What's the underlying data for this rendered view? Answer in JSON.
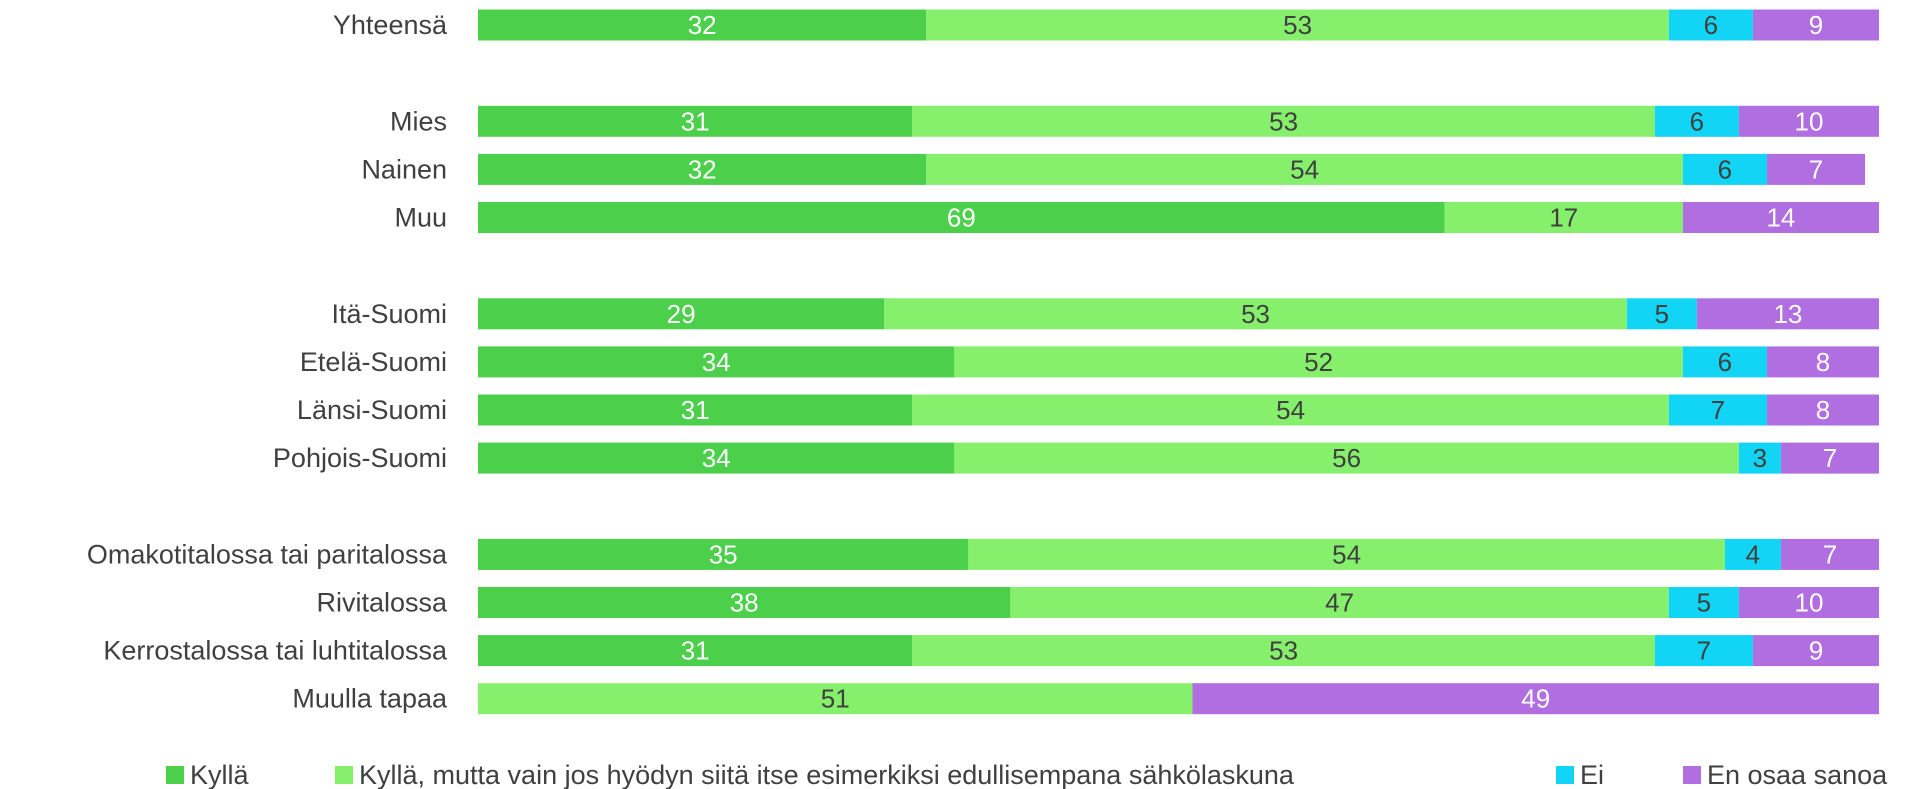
{
  "chart_data": {
    "type": "bar",
    "orientation": "horizontal",
    "stacked": true,
    "title": "",
    "xlabel": "",
    "ylabel": "",
    "xlim": [
      0,
      100
    ],
    "grid": false,
    "legend_position": "bottom",
    "categories": [
      "Yhteensä",
      "Mies",
      "Nainen",
      "Muu",
      "Itä-Suomi",
      "Etelä-Suomi",
      "Länsi-Suomi",
      "Pohjois-Suomi",
      "Omakotitalossa tai paritalossa",
      "Rivitalossa",
      "Kerrostalossa tai luhtitalossa",
      "Muulla tapaa"
    ],
    "groups_after": [
      0,
      3,
      7
    ],
    "series": [
      {
        "name": "Kyllä",
        "color": "#4cd04c",
        "label_color": "#ffffff",
        "values": [
          32,
          31,
          32,
          69,
          29,
          34,
          31,
          34,
          35,
          38,
          31,
          0
        ]
      },
      {
        "name": "Kyllä, mutta vain jos hyödyn siitä itse esimerkiksi edullisempana sähkölaskuna",
        "color": "#86f06c",
        "label_color": "#404040",
        "values": [
          53,
          53,
          54,
          17,
          53,
          52,
          54,
          56,
          54,
          47,
          53,
          51
        ]
      },
      {
        "name": "Ei",
        "color": "#12d4f4",
        "label_color": "#404040",
        "values": [
          6,
          6,
          6,
          0,
          5,
          6,
          7,
          3,
          4,
          5,
          7,
          0
        ]
      },
      {
        "name": "En osaa sanoa",
        "color": "#b06ee0",
        "label_color": "#ffffff",
        "values": [
          9,
          10,
          7,
          14,
          13,
          8,
          8,
          7,
          7,
          10,
          9,
          49
        ]
      }
    ]
  }
}
